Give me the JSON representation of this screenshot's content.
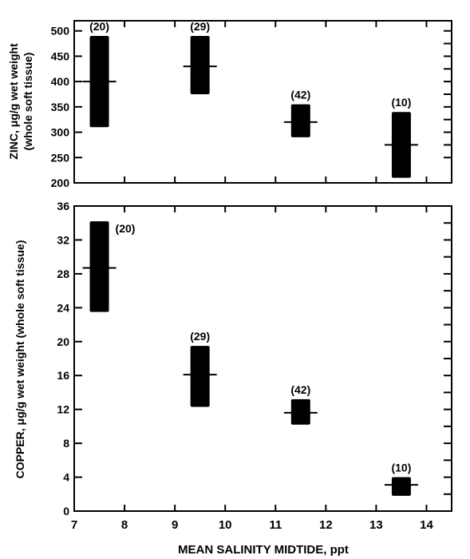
{
  "chart_data": [
    {
      "type": "range-bar",
      "ylabel_line1": "ZINC, μg/g wet weight",
      "ylabel_line2": "(whole soft tissue)",
      "ylim": [
        200,
        520
      ],
      "yticks": [
        200,
        250,
        300,
        350,
        400,
        450,
        500
      ],
      "xlim": [
        7,
        14.5
      ],
      "groups": [
        {
          "x": 7.5,
          "min": 310,
          "max": 490,
          "mean": 400,
          "n_label": "(20)"
        },
        {
          "x": 9.5,
          "min": 375,
          "max": 490,
          "mean": 430,
          "n_label": "(29)"
        },
        {
          "x": 11.5,
          "min": 290,
          "max": 355,
          "mean": 320,
          "n_label": "(42)"
        },
        {
          "x": 13.5,
          "min": 210,
          "max": 340,
          "mean": 275,
          "n_label": "(10)"
        }
      ]
    },
    {
      "type": "range-bar",
      "ylabel": "COPPER, μg/g wet weight (whole soft tissue)",
      "ylim": [
        0,
        36
      ],
      "yticks": [
        0,
        4,
        8,
        12,
        16,
        20,
        24,
        28,
        32,
        36
      ],
      "xlim": [
        7,
        14.5
      ],
      "xticks": [
        7,
        8,
        9,
        10,
        11,
        12,
        13,
        14
      ],
      "xlabel": "MEAN SALINITY MIDTIDE, ppt",
      "groups": [
        {
          "x": 7.5,
          "min": 23.5,
          "max": 34.2,
          "mean": 28.7,
          "n_label": "(20)"
        },
        {
          "x": 9.5,
          "min": 12.3,
          "max": 19.5,
          "mean": 16.1,
          "n_label": "(29)"
        },
        {
          "x": 11.5,
          "min": 10.2,
          "max": 13.2,
          "mean": 11.6,
          "n_label": "(42)"
        },
        {
          "x": 13.5,
          "min": 1.8,
          "max": 4.0,
          "mean": 3.1,
          "n_label": "(10)"
        }
      ]
    }
  ]
}
